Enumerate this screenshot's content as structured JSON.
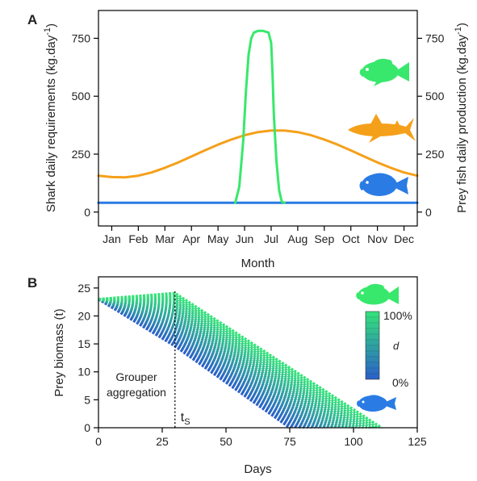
{
  "chart_data": [
    {
      "panel": "A",
      "type": "line",
      "xlabel": "Month",
      "ylabel": "Shark daily requirements (kg.day",
      "ylabel_sup": "-1",
      "ylabel_suffix": ")",
      "y2label": "Prey fish daily production (kg.day",
      "y2label_sup": "-1",
      "y2label_suffix": ")",
      "categories": [
        "Jan",
        "Feb",
        "Mar",
        "Apr",
        "May",
        "Jun",
        "Jul",
        "Aug",
        "Sep",
        "Oct",
        "Nov",
        "Dec"
      ],
      "xlim": [
        0.5,
        12.5
      ],
      "ylim": [
        -60,
        870
      ],
      "yticks": [
        0,
        250,
        500,
        750
      ],
      "y2ticks": [
        0,
        250,
        500,
        750
      ],
      "grid": false,
      "series": [
        {
          "color": "#f5a01a",
          "icon": "shark-silhouette-icon",
          "x": [
            0.5,
            1.0,
            1.5,
            2.0,
            2.5,
            3.0,
            3.5,
            4.0,
            4.5,
            5.0,
            5.5,
            6.0,
            6.5,
            7.0,
            7.5,
            8.0,
            8.5,
            9.0,
            9.5,
            10.0,
            10.5,
            11.0,
            11.5,
            12.0,
            12.5
          ],
          "values": [
            157,
            151,
            150,
            157,
            171,
            191,
            214,
            240,
            266,
            291,
            313,
            332,
            345,
            352,
            352,
            345,
            332,
            313,
            291,
            266,
            240,
            214,
            191,
            171,
            157
          ]
        },
        {
          "color": "#38e86c",
          "icon": "grouper-silhouette-icon",
          "x": [
            5.65,
            5.8,
            5.95,
            6.05,
            6.15,
            6.25,
            6.35,
            6.5,
            6.7,
            6.9,
            7.0,
            7.05,
            7.1,
            7.2,
            7.3,
            7.4,
            7.5
          ],
          "values": [
            40,
            110,
            310,
            520,
            680,
            750,
            775,
            782,
            782,
            775,
            730,
            600,
            420,
            220,
            95,
            45,
            40
          ]
        },
        {
          "color": "#2a7be4",
          "icon": "parrotfish-silhouette-icon",
          "x": [
            0.5,
            12.5
          ],
          "values": [
            40,
            40
          ]
        }
      ]
    },
    {
      "panel": "B",
      "type": "line",
      "xlabel": "Days",
      "ylabel": "Prey biomass (t)",
      "xlim": [
        0,
        125
      ],
      "ylim": [
        0,
        27
      ],
      "xticks": [
        0,
        25,
        50,
        75,
        100,
        125
      ],
      "yticks": [
        0,
        5,
        10,
        15,
        20,
        25
      ],
      "grid": false,
      "start_biomass": 23,
      "ts_day": 30,
      "ts_label": "t",
      "ts_label_sub": "S",
      "aggregation_label": [
        "Grouper",
        "aggregation"
      ],
      "series_min": {
        "d": 0,
        "peak_biomass": 14.6,
        "zero_day": 75,
        "color": "#2a5fc9"
      },
      "series_max": {
        "d": 1,
        "peak_biomass": 24.1,
        "zero_day": 111,
        "color": "#35e37a"
      },
      "n_series": 26,
      "legend": {
        "title": "d",
        "max_label": "100%",
        "min_label": "0%",
        "placement": "top-right",
        "color_top": "#35e37a",
        "color_bottom": "#2a5fc9"
      }
    }
  ]
}
